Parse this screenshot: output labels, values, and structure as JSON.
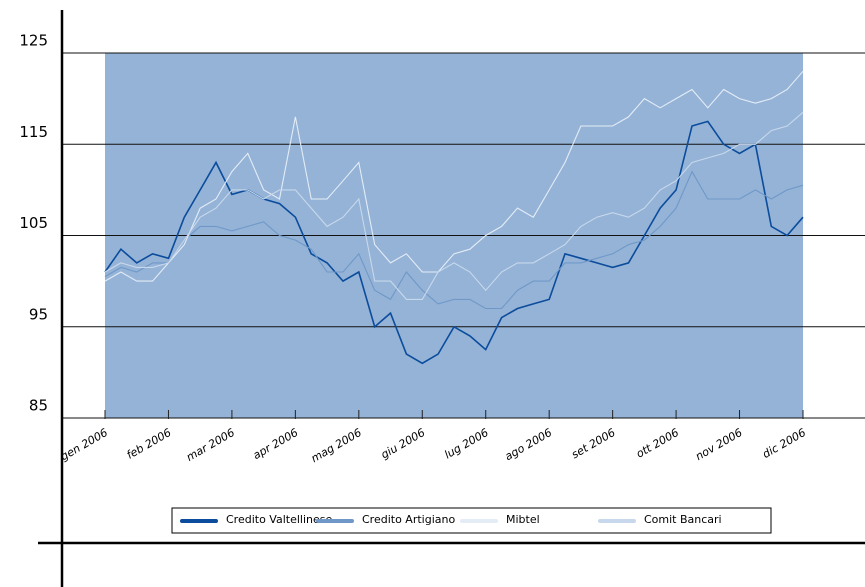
{
  "chart_data": {
    "type": "line",
    "categories": [
      "gen 2006",
      null,
      null,
      null,
      "feb 2006",
      null,
      null,
      null,
      "mar 2006",
      null,
      null,
      null,
      "apr 2006",
      null,
      null,
      null,
      "mag 2006",
      null,
      null,
      null,
      "giu 2006",
      null,
      null,
      null,
      "lug 2006",
      null,
      null,
      null,
      "ago 2006",
      null,
      null,
      null,
      "set 2006",
      null,
      null,
      null,
      "ott 2006",
      null,
      null,
      null,
      "nov 2006",
      null,
      null,
      null,
      "dic 2006"
    ],
    "series": [
      {
        "name": "Credito Valtellinese",
        "color": "#0b4c9c",
        "values": [
          101,
          103.5,
          102,
          103,
          102.5,
          107,
          110,
          113,
          109.5,
          110,
          109,
          108.5,
          107,
          103,
          102,
          100,
          101,
          95,
          96.5,
          92,
          91,
          92,
          95,
          94,
          92.5,
          96,
          97,
          97.5,
          98,
          103,
          102.5,
          102,
          101.5,
          102,
          105,
          108,
          110,
          117,
          117.5,
          115,
          114,
          115,
          106,
          105,
          107
        ]
      },
      {
        "name": "Credito Artigiano",
        "color": "#6f98c8",
        "values": [
          100.5,
          101.5,
          101,
          102,
          102,
          104.5,
          106,
          106,
          105.5,
          106,
          106.5,
          105,
          104.5,
          103.5,
          101,
          101,
          103,
          99,
          98,
          101,
          99,
          97.5,
          98,
          98,
          97,
          97,
          99,
          100,
          100,
          102,
          102,
          102.5,
          103,
          104,
          104.5,
          106,
          108,
          112,
          109,
          109,
          109,
          110,
          109,
          110,
          110.5
        ]
      },
      {
        "name": "Mibtel",
        "color": "#e4ecf6",
        "values": [
          100,
          101,
          100,
          100,
          102,
          104,
          108,
          109,
          112,
          114,
          110,
          109,
          118,
          109,
          109,
          111,
          113,
          104,
          102,
          103,
          101,
          101,
          103,
          103.5,
          105,
          106,
          108,
          107,
          110,
          113,
          117,
          117,
          117,
          118,
          120,
          119,
          120,
          121,
          119,
          121,
          120,
          119.5,
          120,
          121,
          123
        ]
      },
      {
        "name": "Comit Bancari",
        "color": "#c8d8ec",
        "values": [
          101,
          102,
          101.5,
          101.5,
          102,
          104.5,
          107,
          108,
          110,
          110,
          109,
          110,
          110,
          108,
          106,
          107,
          109,
          100,
          100,
          98,
          98,
          101,
          102,
          101,
          99,
          101,
          102,
          102,
          103,
          104,
          106,
          107,
          107.5,
          107,
          108,
          110,
          111,
          113,
          113.5,
          114,
          115,
          115,
          116.5,
          117,
          118.5
        ]
      }
    ],
    "ylim": [
      85,
      125
    ],
    "yticks": [
      85,
      95,
      105,
      115,
      125
    ],
    "grid": true,
    "legend": "bottom"
  }
}
